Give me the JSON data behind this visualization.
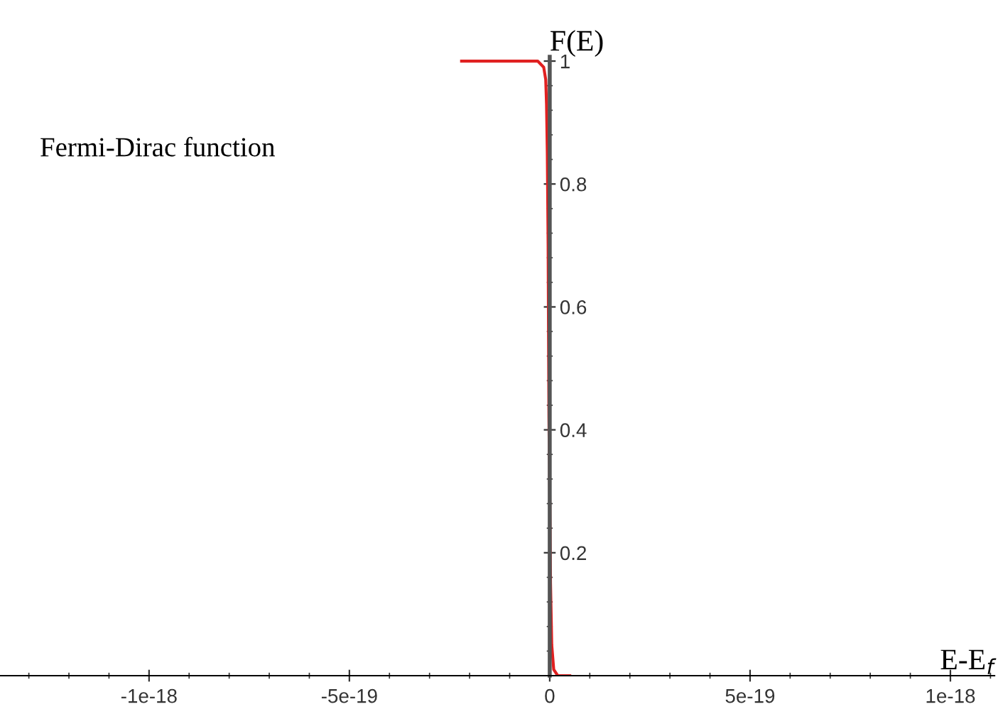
{
  "chart_data": {
    "type": "line",
    "xlabel": "E-E$_{f}$",
    "ylabel": "F(E)",
    "annotations": [
      "Fermi-Dirac function"
    ],
    "x": [
      -2.2e-19,
      -1e-19,
      -3e-20,
      -1.5e-20,
      -1e-20,
      -8e-21,
      -6e-21,
      -4e-21,
      -2e-21,
      0,
      2e-21,
      5e-21,
      1e-20,
      2e-20,
      5e-20
    ],
    "series": [
      {
        "color": "#e02020",
        "values": [
          1,
          1,
          1,
          0.99,
          0.97,
          0.93,
          0.85,
          0.7,
          0.42,
          0.3,
          0.15,
          0.05,
          0.01,
          0,
          0
        ]
      }
    ],
    "xlim": [
      -1.372e-18,
      1.11e-18
    ],
    "ylim": [
      0,
      1.007
    ],
    "xticks": [
      {
        "value": -1e-18,
        "label": "-1e-18"
      },
      {
        "value": -5e-19,
        "label": "-5e-19"
      },
      {
        "value": 0,
        "label": "0"
      },
      {
        "value": 5e-19,
        "label": "5e-19"
      },
      {
        "value": 1e-18,
        "label": "1e-18"
      }
    ],
    "yticks": [
      {
        "value": 0.2,
        "label": "0.2"
      },
      {
        "value": 0.4,
        "label": "0.4"
      },
      {
        "value": 0.6,
        "label": "0.6"
      },
      {
        "value": 0.8,
        "label": "0.8"
      },
      {
        "value": 1,
        "label": "1"
      }
    ],
    "grid": false,
    "legend": false,
    "marker": "none",
    "line_style": "solid"
  }
}
